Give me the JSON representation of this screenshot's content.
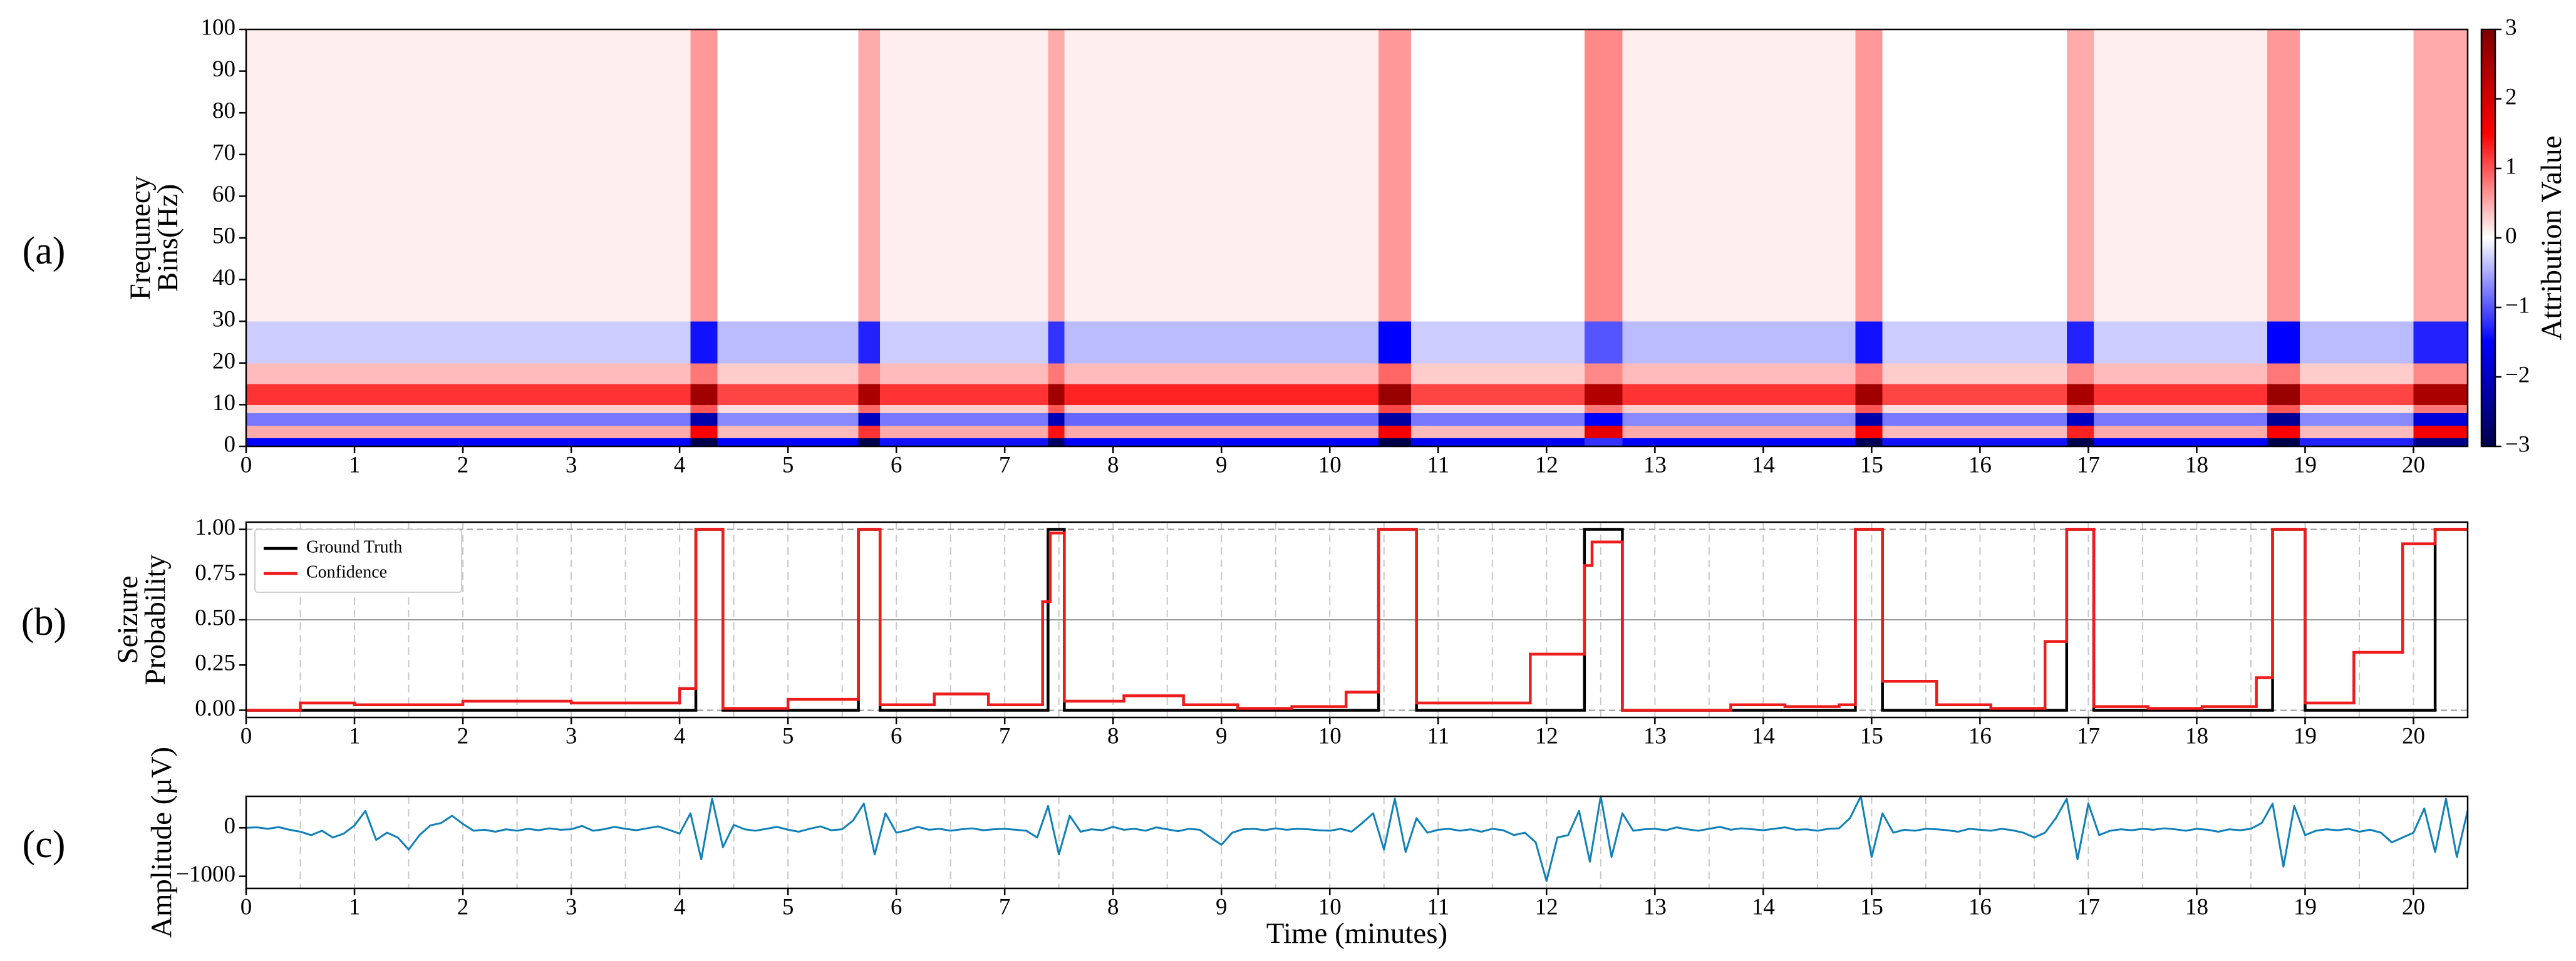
{
  "chart_data": [
    {
      "type": "heatmap",
      "panel_label": "(a)",
      "ylabel": [
        "Frequnecy",
        "Bins(Hz)"
      ],
      "x": [
        0,
        4.1,
        4.35,
        5.65,
        5.85,
        7.4,
        7.55,
        10.45,
        10.75,
        12.35,
        12.7,
        14.85,
        15.1,
        16.8,
        17.05,
        18.65,
        18.95,
        20.0,
        20.5
      ],
      "y": [
        0,
        2,
        5,
        8,
        10,
        15,
        20,
        30,
        100
      ],
      "values": [
        [
          -1.5,
          -3,
          -1.5,
          -3,
          -1.4,
          -2.8,
          -1.5,
          -3,
          -1.6,
          -1.2,
          -1.5,
          -2.9,
          -1.4,
          -3,
          -1.5,
          -3,
          -1.3,
          -2.5
        ],
        [
          0.5,
          1.5,
          0.4,
          1.2,
          0.5,
          1.4,
          0.5,
          1.6,
          0.4,
          1.8,
          0.5,
          1.5,
          0.4,
          1.3,
          0.5,
          1.5,
          0.4,
          1.6
        ],
        [
          -0.8,
          -2.2,
          -0.7,
          -2,
          -0.8,
          -2.1,
          -0.9,
          -2.3,
          -0.8,
          -1.5,
          -0.7,
          -2.2,
          -0.8,
          -2,
          -0.8,
          -2.4,
          -0.7,
          -1.8
        ],
        [
          0.3,
          1,
          0.2,
          0.9,
          0.3,
          1,
          0.3,
          1.1,
          0.2,
          0.8,
          0.3,
          1,
          0.2,
          0.9,
          0.3,
          1,
          0.2,
          0.8
        ],
        [
          1.2,
          2.6,
          1.1,
          2.5,
          1.2,
          2.6,
          1.3,
          2.7,
          1.1,
          2.4,
          1.2,
          2.6,
          1.1,
          2.5,
          1.2,
          2.7,
          1.1,
          2.5
        ],
        [
          0.4,
          0.8,
          0.3,
          0.7,
          0.4,
          0.8,
          0.4,
          0.9,
          0.3,
          0.7,
          0.4,
          0.8,
          0.3,
          0.7,
          0.4,
          0.8,
          0.3,
          0.7
        ],
        [
          -0.3,
          -1.4,
          -0.4,
          -1.3,
          -0.3,
          -1.2,
          -0.4,
          -1.5,
          -0.3,
          -1,
          -0.4,
          -1.4,
          -0.3,
          -1.3,
          -0.3,
          -1.5,
          -0.4,
          -1.3
        ],
        [
          0.1,
          0.6,
          0,
          0.5,
          0.1,
          0.5,
          0.1,
          0.6,
          0,
          0.7,
          0.1,
          0.6,
          0,
          0.5,
          0.1,
          0.6,
          0,
          0.5
        ]
      ],
      "xlim": [
        0,
        20.5
      ],
      "xticks": [
        0,
        1,
        2,
        3,
        4,
        5,
        6,
        7,
        8,
        9,
        10,
        11,
        12,
        13,
        14,
        15,
        16,
        17,
        18,
        19,
        20
      ],
      "ylim": [
        0,
        100
      ],
      "yticks": [
        0,
        10,
        20,
        30,
        40,
        50,
        60,
        70,
        80,
        90,
        100
      ],
      "colorbar": {
        "label": "Attribution Value",
        "lim": [
          -3,
          3
        ],
        "colors": [
          "#00004c",
          "#0000ff",
          "#ffffff",
          "#ff0000",
          "#7f0000"
        ],
        "ticks": [
          {
            "value": -3,
            "label": "−3"
          },
          {
            "value": -2,
            "label": "−2"
          },
          {
            "value": -1,
            "label": "−1"
          },
          0,
          1,
          2,
          3
        ]
      }
    },
    {
      "type": "step",
      "panel_label": "(b)",
      "ylabel": [
        "Seizure",
        "Probability"
      ],
      "legend": "upper left",
      "series": [
        {
          "name": "Ground Truth",
          "color": "#000000",
          "x": [
            0,
            4.15,
            4.4,
            5.65,
            5.85,
            7.4,
            7.55,
            10.45,
            10.8,
            12.35,
            12.7,
            14.85,
            15.1,
            16.8,
            17.05,
            18.7,
            19.0,
            20.2
          ],
          "values": [
            0,
            1,
            0,
            1,
            0,
            1,
            0,
            1,
            0,
            1,
            0,
            1,
            0,
            1,
            0,
            1,
            0,
            1
          ]
        },
        {
          "name": "Confidence",
          "color": "#ee1c1c",
          "x": [
            0,
            0.5,
            1.0,
            2.0,
            3.0,
            4.0,
            4.15,
            4.4,
            5.0,
            5.65,
            5.85,
            6.35,
            6.85,
            7.35,
            7.42,
            7.55,
            8.1,
            8.65,
            9.15,
            9.65,
            10.15,
            10.45,
            10.8,
            11.85,
            12.35,
            12.42,
            12.7,
            13.7,
            14.2,
            14.7,
            14.85,
            15.1,
            15.6,
            16.1,
            16.6,
            16.8,
            17.05,
            17.55,
            18.05,
            18.55,
            18.7,
            19.0,
            19.45,
            19.9,
            20.2
          ],
          "values": [
            0,
            0.04,
            0.03,
            0.05,
            0.04,
            0.12,
            1,
            0.01,
            0.06,
            1,
            0.03,
            0.09,
            0.03,
            0.6,
            0.98,
            0.05,
            0.08,
            0.03,
            0.01,
            0.02,
            0.1,
            1,
            0.04,
            0.31,
            0.8,
            0.93,
            0,
            0.03,
            0.02,
            0.03,
            1,
            0.16,
            0.03,
            0.01,
            0.38,
            1,
            0.02,
            0.01,
            0.02,
            0.18,
            1,
            0.04,
            0.32,
            0.92,
            1
          ]
        }
      ],
      "xlim": [
        0,
        20.5
      ],
      "xticks": [
        0,
        1,
        2,
        3,
        4,
        5,
        6,
        7,
        8,
        9,
        10,
        11,
        12,
        13,
        14,
        15,
        16,
        17,
        18,
        19,
        20
      ],
      "xgrid": [
        0.5,
        1,
        1.5,
        2,
        2.5,
        3,
        3.5,
        4,
        4.5,
        5,
        5.5,
        6,
        6.5,
        7,
        7.5,
        8,
        8.5,
        9,
        9.5,
        10,
        10.5,
        11,
        11.5,
        12,
        12.5,
        13,
        13.5,
        14,
        14.5,
        15,
        15.5,
        16,
        16.5,
        17,
        17.5,
        18,
        18.5,
        19,
        19.5,
        20
      ],
      "reference_lines": [
        {
          "y": 0,
          "style": "dashed"
        },
        {
          "y": 0.5,
          "style": "solid"
        },
        {
          "y": 1,
          "style": "dashed"
        }
      ],
      "ylim": [
        -0.04,
        1.04
      ],
      "yticks": [
        {
          "value": 0,
          "label": "0.00"
        },
        {
          "value": 0.25,
          "label": "0.25"
        },
        {
          "value": 0.5,
          "label": "0.50"
        },
        {
          "value": 0.75,
          "label": "0.75"
        },
        {
          "value": 1,
          "label": "1.00"
        }
      ]
    },
    {
      "type": "line",
      "panel_label": "(c)",
      "ylabel": [
        "Amplitude (µV)"
      ],
      "xlabel": "Time (minutes)",
      "color": "#1080b8",
      "x": [
        0,
        0.1,
        0.2,
        0.3,
        0.4,
        0.5,
        0.6,
        0.7,
        0.8,
        0.9,
        1,
        1.1,
        1.2,
        1.3,
        1.4,
        1.5,
        1.6,
        1.7,
        1.8,
        1.9,
        2,
        2.1,
        2.2,
        2.3,
        2.4,
        2.5,
        2.6,
        2.7,
        2.8,
        2.9,
        3,
        3.1,
        3.2,
        3.3,
        3.4,
        3.5,
        3.6,
        3.7,
        3.8,
        3.9,
        4,
        4.1,
        4.2,
        4.3,
        4.4,
        4.5,
        4.6,
        4.7,
        4.8,
        4.9,
        5,
        5.1,
        5.2,
        5.3,
        5.4,
        5.5,
        5.6,
        5.7,
        5.8,
        5.9,
        6,
        6.1,
        6.2,
        6.3,
        6.4,
        6.5,
        6.6,
        6.7,
        6.8,
        6.9,
        7,
        7.1,
        7.2,
        7.3,
        7.4,
        7.5,
        7.6,
        7.7,
        7.8,
        7.9,
        8,
        8.1,
        8.2,
        8.3,
        8.4,
        8.5,
        8.6,
        8.7,
        8.8,
        8.9,
        9,
        9.1,
        9.2,
        9.3,
        9.4,
        9.5,
        9.6,
        9.7,
        9.8,
        9.9,
        10,
        10.1,
        10.2,
        10.3,
        10.4,
        10.5,
        10.6,
        10.7,
        10.8,
        10.9,
        11,
        11.1,
        11.2,
        11.3,
        11.4,
        11.5,
        11.6,
        11.7,
        11.8,
        11.9,
        12,
        12.1,
        12.2,
        12.3,
        12.4,
        12.5,
        12.6,
        12.7,
        12.8,
        12.9,
        13,
        13.1,
        13.2,
        13.3,
        13.4,
        13.5,
        13.6,
        13.7,
        13.8,
        13.9,
        14,
        14.1,
        14.2,
        14.3,
        14.4,
        14.5,
        14.6,
        14.7,
        14.8,
        14.9,
        15,
        15.1,
        15.2,
        15.3,
        15.4,
        15.5,
        15.6,
        15.7,
        15.8,
        15.9,
        16,
        16.1,
        16.2,
        16.3,
        16.4,
        16.5,
        16.6,
        16.7,
        16.8,
        16.9,
        17,
        17.1,
        17.2,
        17.3,
        17.4,
        17.5,
        17.6,
        17.7,
        17.8,
        17.9,
        18,
        18.1,
        18.2,
        18.3,
        18.4,
        18.5,
        18.6,
        18.7,
        18.8,
        18.9,
        19,
        19.1,
        19.2,
        19.3,
        19.4,
        19.5,
        19.6,
        19.7,
        19.8,
        19.9,
        20,
        20.1,
        20.2,
        20.3,
        20.4,
        20.5
      ],
      "values": [
        0,
        10,
        -20,
        15,
        -40,
        -80,
        -150,
        -60,
        -200,
        -120,
        50,
        350,
        -250,
        -100,
        -200,
        -450,
        -150,
        50,
        100,
        250,
        80,
        -60,
        -40,
        -80,
        -30,
        -60,
        -20,
        -50,
        -10,
        -40,
        -30,
        40,
        -60,
        -30,
        20,
        -20,
        -50,
        -10,
        30,
        -40,
        -120,
        300,
        -650,
        600,
        -400,
        60,
        -30,
        -60,
        -20,
        20,
        -40,
        -80,
        -20,
        30,
        -50,
        -30,
        150,
        500,
        -550,
        300,
        -100,
        -50,
        20,
        -40,
        -20,
        -60,
        -30,
        -10,
        -50,
        -30,
        -20,
        -40,
        -60,
        -200,
        450,
        -550,
        250,
        -80,
        -30,
        -50,
        20,
        -40,
        -20,
        -60,
        10,
        -30,
        -70,
        -20,
        -40,
        -200,
        -350,
        -100,
        -30,
        -20,
        -50,
        -10,
        -40,
        -20,
        -30,
        -50,
        -60,
        -20,
        -80,
        100,
        300,
        -450,
        600,
        -500,
        200,
        -100,
        -40,
        -20,
        -60,
        -30,
        -80,
        -20,
        -50,
        -150,
        -100,
        -300,
        -1100,
        -200,
        -150,
        350,
        -700,
        650,
        -600,
        300,
        -60,
        -30,
        -20,
        -50,
        10,
        -30,
        -60,
        -20,
        20,
        -40,
        -10,
        -30,
        -50,
        -20,
        10,
        -40,
        -30,
        -60,
        -20,
        -10,
        200,
        650,
        -600,
        300,
        -100,
        -40,
        -60,
        -20,
        -30,
        -50,
        -80,
        -20,
        -40,
        -60,
        -20,
        -50,
        -100,
        -200,
        -100,
        200,
        600,
        -650,
        500,
        -150,
        -60,
        -30,
        -50,
        -20,
        -40,
        -10,
        -30,
        -60,
        -20,
        -40,
        -80,
        -30,
        -50,
        -20,
        100,
        500,
        -800,
        450,
        -150,
        -60,
        -30,
        -50,
        -20,
        -80,
        -40,
        -100,
        -300,
        -200,
        -100,
        400,
        -500,
        600,
        -600,
        350
      ],
      "xlim": [
        0,
        20.5
      ],
      "xticks": [
        0,
        1,
        2,
        3,
        4,
        5,
        6,
        7,
        8,
        9,
        10,
        11,
        12,
        13,
        14,
        15,
        16,
        17,
        18,
        19,
        20
      ],
      "xgrid": [
        0.5,
        1,
        1.5,
        2,
        2.5,
        3,
        3.5,
        4,
        4.5,
        5,
        5.5,
        6,
        6.5,
        7,
        7.5,
        8,
        8.5,
        9,
        9.5,
        10,
        10.5,
        11,
        11.5,
        12,
        12.5,
        13,
        13.5,
        14,
        14.5,
        15,
        15.5,
        16,
        16.5,
        17,
        17.5,
        18,
        18.5,
        19,
        19.5,
        20
      ],
      "ylim": [
        -1250,
        650
      ],
      "yticks": [
        {
          "value": -1000,
          "label": "−1000"
        },
        0
      ]
    }
  ]
}
